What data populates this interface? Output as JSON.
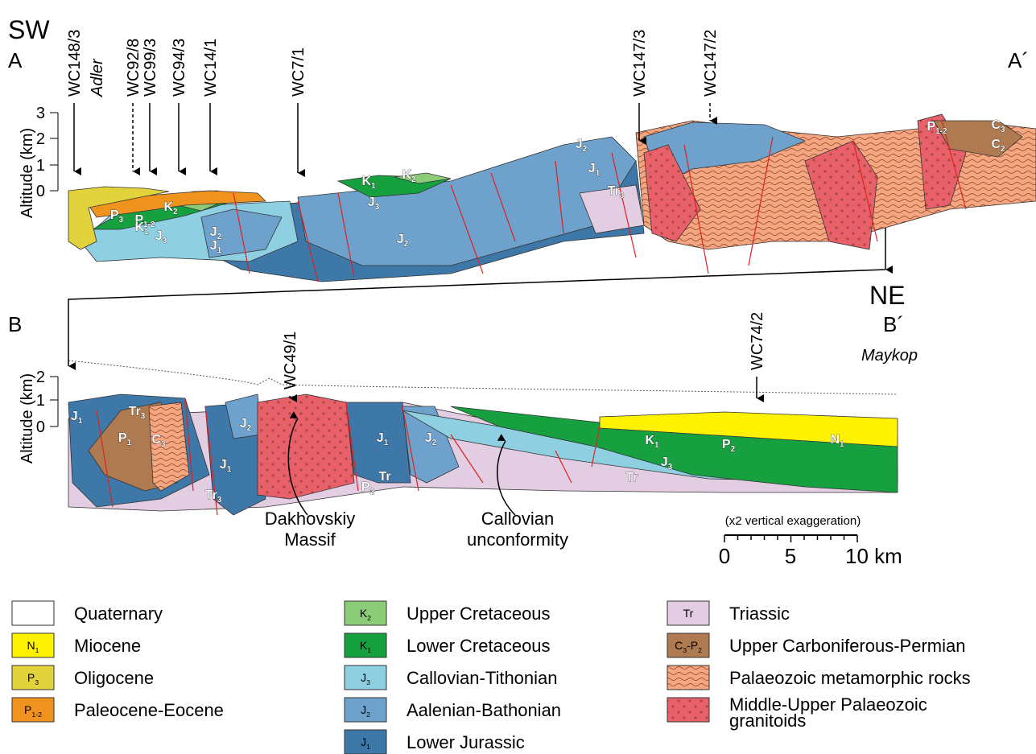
{
  "section_a": {
    "start_direction": "SW",
    "start_label": "A",
    "end_label": "A´",
    "axis_title": "Altitude (km)",
    "ticks": [
      "3",
      "2",
      "1",
      "0"
    ],
    "wells": [
      {
        "name": "WC148/3",
        "place": "Adler"
      },
      {
        "name": "WC92/8"
      },
      {
        "name": "WC99/3"
      },
      {
        "name": "WC94/3"
      },
      {
        "name": "WC14/1"
      },
      {
        "name": "WC7/1"
      },
      {
        "name": "WC147/3"
      },
      {
        "name": "WC147/2"
      }
    ],
    "units": [
      [
        [
          "P",
          "3"
        ]
      ],
      [
        [
          "P",
          "1-2"
        ]
      ],
      [
        [
          "K",
          "2"
        ]
      ],
      [
        [
          "K",
          "1"
        ]
      ],
      [
        [
          "J",
          "3"
        ]
      ],
      [
        [
          "J",
          "2"
        ]
      ],
      [
        [
          "J",
          "1"
        ]
      ],
      [
        [
          "K",
          "1"
        ]
      ],
      [
        [
          "K",
          "2"
        ]
      ],
      [
        [
          "J",
          "3"
        ]
      ],
      [
        [
          "J",
          "2"
        ]
      ],
      [
        [
          "J",
          "2"
        ]
      ],
      [
        [
          "J",
          "1"
        ]
      ],
      [
        [
          "Tr",
          "3"
        ]
      ],
      [
        [
          "P",
          "1-2"
        ]
      ],
      [
        [
          "C",
          "3"
        ]
      ],
      [
        [
          "C",
          "2"
        ]
      ]
    ]
  },
  "section_b": {
    "start_label": "B",
    "end_direction": "NE",
    "end_label": "B´",
    "place": "Maykop",
    "axis_title": "Altitude (km)",
    "ticks": [
      "2",
      "1",
      "0"
    ],
    "wells": [
      {
        "name": "WC49/1"
      },
      {
        "name": "WC74/2"
      }
    ],
    "units": [
      [
        [
          "J",
          "1"
        ]
      ],
      [
        [
          "Tr",
          "3"
        ]
      ],
      [
        [
          "P",
          "1"
        ]
      ],
      [
        [
          "C",
          "3"
        ]
      ],
      [
        [
          "J",
          "2"
        ]
      ],
      [
        [
          "J",
          "1"
        ]
      ],
      [
        [
          "Tr",
          "3"
        ]
      ],
      [
        [
          "J",
          "1"
        ]
      ],
      [
        [
          "J",
          "2"
        ]
      ],
      [
        [
          "Tr"
        ]
      ],
      [
        [
          "P",
          "2"
        ]
      ],
      [
        [
          "K",
          "1"
        ]
      ],
      [
        [
          "P",
          "2"
        ]
      ],
      [
        [
          "N",
          "1"
        ]
      ],
      [
        [
          "J",
          "3"
        ]
      ],
      [
        [
          "Tr"
        ]
      ]
    ]
  },
  "annotations": [
    [
      "Dakhovskiy",
      "Massif"
    ],
    [
      "Callovian",
      "unconformity"
    ]
  ],
  "scale": {
    "note": "(x2 vertical exaggeration)",
    "labels": [
      "0",
      "5",
      "10 km"
    ]
  },
  "legend": [
    {
      "name": "Quaternary",
      "color": "#ffffff"
    },
    {
      "code": [
        [
          "N",
          "1"
        ]
      ],
      "name": "Miocene",
      "color": "#fff200"
    },
    {
      "code": [
        [
          "P",
          "3"
        ]
      ],
      "name": "Oligocene",
      "color": "#e2d23c"
    },
    {
      "code": [
        [
          "P",
          "1-2"
        ]
      ],
      "name": "Paleocene-Eocene",
      "color": "#f0921e"
    },
    {
      "code": [
        [
          "K",
          "2"
        ]
      ],
      "name": "Upper Cretaceous",
      "color": "#8ccc78"
    },
    {
      "code": [
        [
          "K",
          "1"
        ]
      ],
      "name": "Lower Cretaceous",
      "color": "#16a040"
    },
    {
      "code": [
        [
          "J",
          "3"
        ]
      ],
      "name": "Callovian-Tithonian",
      "color": "#8ed0e2"
    },
    {
      "code": [
        [
          "J",
          "2"
        ]
      ],
      "name": "Aalenian-Bathonian",
      "color": "#6ea2cc"
    },
    {
      "code": [
        [
          "J",
          "1"
        ]
      ],
      "name": "Lower Jurassic",
      "color": "#3e78a8"
    },
    {
      "code": [
        [
          "Tr"
        ]
      ],
      "name": "Triassic",
      "color": "#e2cde2"
    },
    {
      "code": [
        [
          "C",
          "3"
        ],
        [
          "-P",
          "2"
        ]
      ],
      "name": "Upper Carboniferous-Permian",
      "color": "#b07a50"
    },
    {
      "name": "Palaeozoic metamorphic rocks",
      "color": "#f4a680"
    },
    {
      "name": [
        "Middle-Upper Palaeozoic",
        "granitoids"
      ],
      "color": "#e8606a"
    }
  ]
}
